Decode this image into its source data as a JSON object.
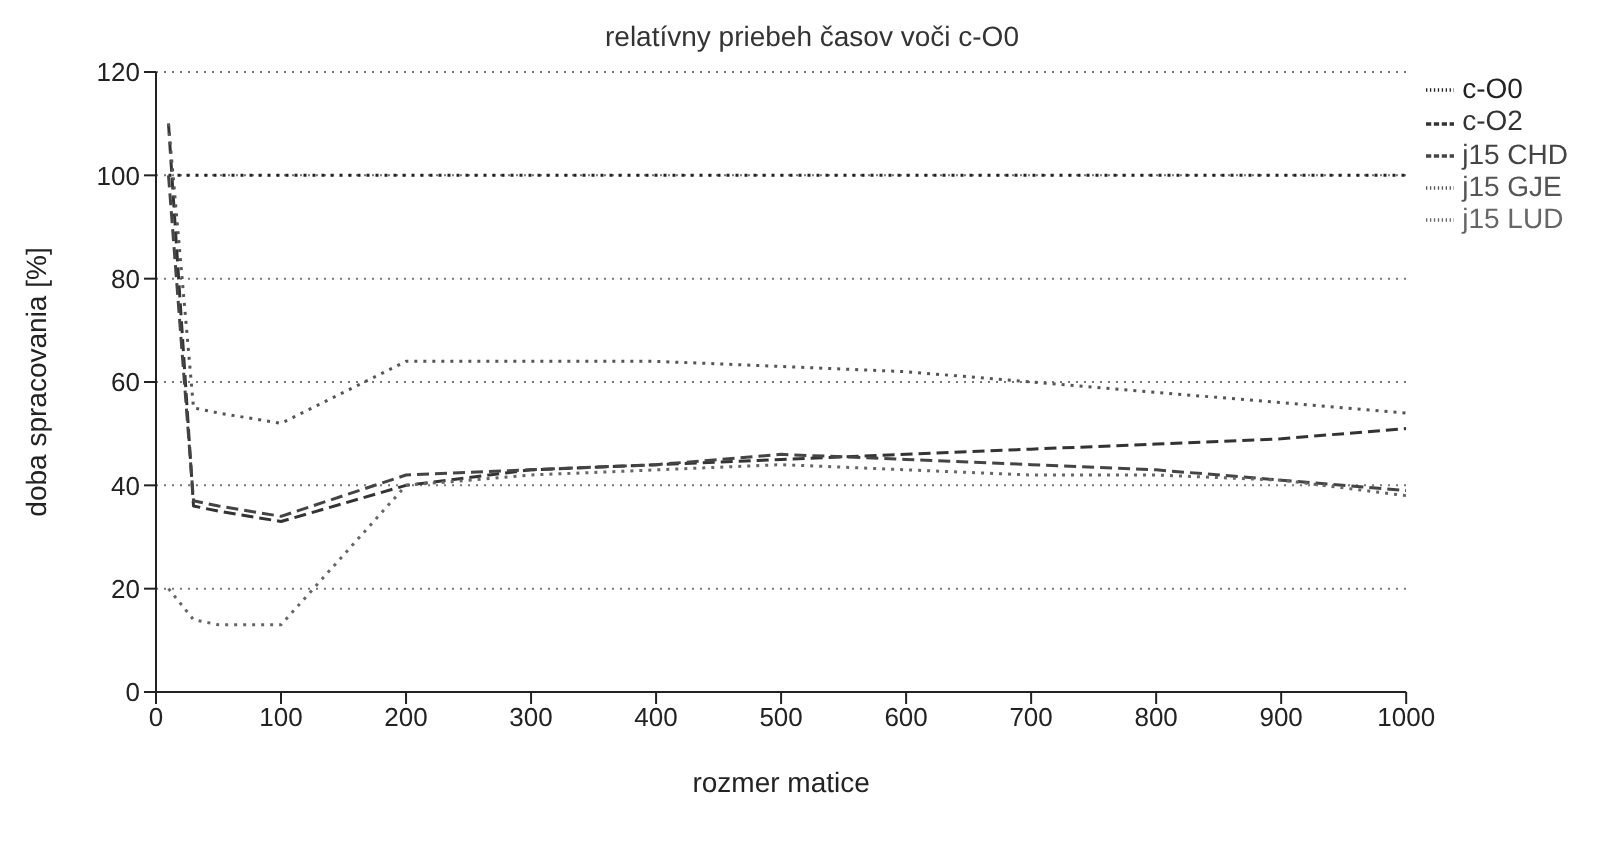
{
  "chart_data": {
    "type": "line",
    "title": "relatívny priebeh časov voči c-O0",
    "xlabel": "rozmer matice",
    "ylabel": "doba spracovania [%]",
    "xlim": [
      0,
      1000
    ],
    "xticks": [
      0,
      100,
      200,
      300,
      400,
      500,
      600,
      700,
      800,
      900,
      1000
    ],
    "ylim": [
      0,
      120
    ],
    "yticks": [
      0,
      20,
      40,
      60,
      80,
      100,
      120
    ],
    "grid": "y",
    "legend": "right",
    "marker": "none",
    "series": [
      {
        "name": "c-O0",
        "color": "#222222",
        "line_style": "dotted",
        "x": [
          10,
          30,
          50,
          100,
          200,
          300,
          400,
          500,
          600,
          700,
          800,
          900,
          1000
        ],
        "values": [
          100,
          100,
          100,
          100,
          100,
          100,
          100,
          100,
          100,
          100,
          100,
          100,
          100
        ]
      },
      {
        "name": "c-O2",
        "color": "#333333",
        "line_style": "dashed",
        "x": [
          10,
          30,
          50,
          100,
          200,
          300,
          400,
          500,
          600,
          700,
          800,
          900,
          1000
        ],
        "values": [
          110,
          36,
          35,
          33,
          40,
          43,
          44,
          45,
          46,
          47,
          48,
          49,
          51
        ]
      },
      {
        "name": "j15 CHD",
        "color": "#444444",
        "line_style": "dashed",
        "x": [
          10,
          30,
          50,
          100,
          200,
          300,
          400,
          500,
          600,
          700,
          800,
          900,
          1000
        ],
        "values": [
          100,
          37,
          36,
          34,
          42,
          43,
          44,
          46,
          45,
          44,
          43,
          41,
          39
        ]
      },
      {
        "name": "j15 GJE",
        "color": "#555555",
        "line_style": "dotted",
        "x": [
          10,
          30,
          50,
          100,
          200,
          300,
          400,
          500,
          600,
          700,
          800,
          900,
          1000
        ],
        "values": [
          110,
          55,
          54,
          52,
          64,
          64,
          64,
          63,
          62,
          60,
          58,
          56,
          54
        ]
      },
      {
        "name": "j15 LUD",
        "color": "#666666",
        "line_style": "dotted",
        "x": [
          10,
          30,
          50,
          100,
          200,
          300,
          400,
          500,
          600,
          700,
          800,
          900,
          1000
        ],
        "values": [
          20,
          14,
          13,
          13,
          40,
          42,
          43,
          44,
          43,
          42,
          42,
          41,
          38
        ]
      }
    ]
  }
}
